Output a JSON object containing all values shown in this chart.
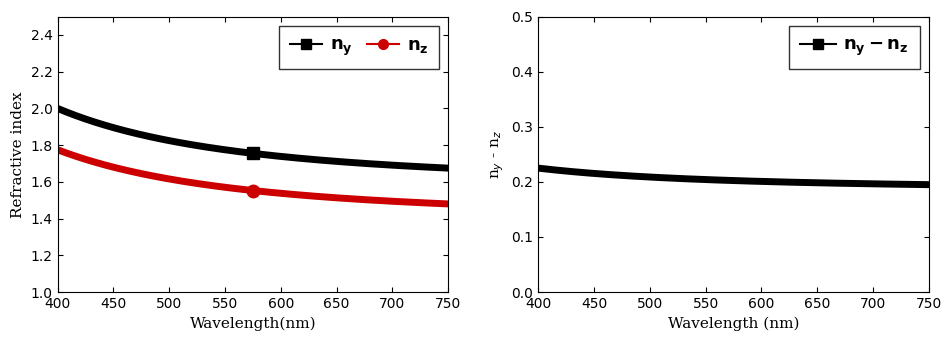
{
  "wavelength_start": 400,
  "wavelength_end": 750,
  "ny_400": 2.0,
  "ny_750": 1.675,
  "nz_400": 1.775,
  "nz_750": 1.48,
  "ny_color": "#000000",
  "nz_color": "#cc0000",
  "delta_color": "#000000",
  "ylabel_left": "Refractive index",
  "ylabel_right": "n$_y$ - n$_z$",
  "xlabel_left": "Wavelength(nm)",
  "xlabel_right": "Wavelength (nm)",
  "ylim_left": [
    1.0,
    2.5
  ],
  "ylim_right": [
    0.0,
    0.5
  ],
  "xlim": [
    400,
    750
  ],
  "yticks_left": [
    1.0,
    1.2,
    1.4,
    1.6,
    1.8,
    2.0,
    2.2,
    2.4
  ],
  "yticks_right": [
    0.0,
    0.1,
    0.2,
    0.3,
    0.4,
    0.5
  ],
  "xticks": [
    400,
    450,
    500,
    550,
    600,
    650,
    700,
    750
  ],
  "line_width": 5.0,
  "marker_size": 9,
  "dispersion_power": 2.5
}
